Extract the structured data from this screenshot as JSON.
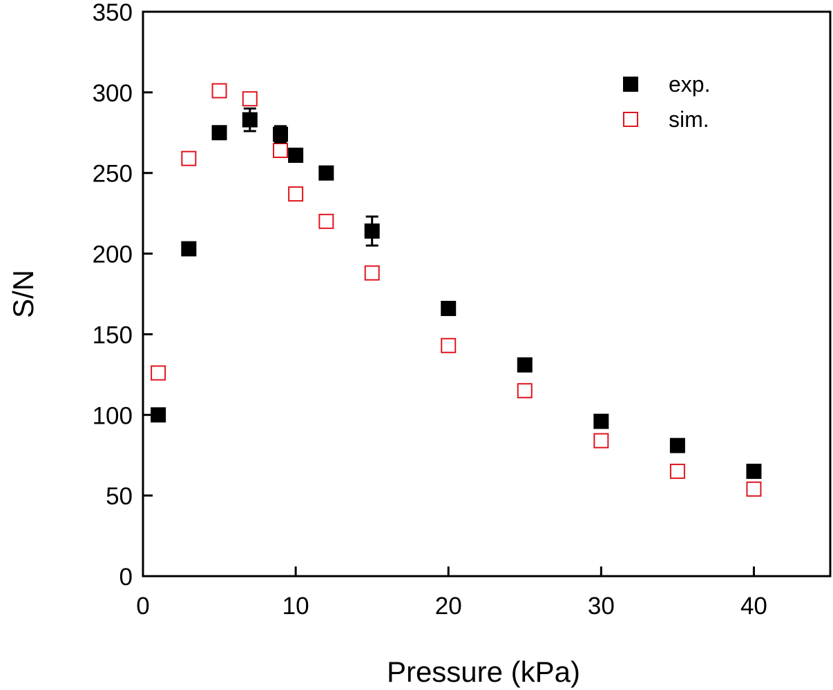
{
  "chart_data": {
    "type": "scatter",
    "title": "",
    "xlabel": "Pressure (kPa)",
    "ylabel": "S/N",
    "xlim": [
      0,
      45
    ],
    "ylim": [
      0,
      350
    ],
    "xticks": [
      0,
      10,
      20,
      30,
      40
    ],
    "yticks": [
      0,
      50,
      100,
      150,
      200,
      250,
      300,
      350
    ],
    "grid": false,
    "legend_position": "top-right",
    "series": [
      {
        "name": "exp.",
        "marker": "filled-square",
        "color": "#000000",
        "x": [
          1,
          3,
          5,
          7,
          9,
          10,
          12,
          15,
          20,
          25,
          30,
          35,
          40
        ],
        "y": [
          100,
          203,
          275,
          283,
          274,
          261,
          250,
          214,
          166,
          131,
          96,
          81,
          65
        ],
        "error": [
          0,
          0,
          3,
          7,
          5,
          0,
          0,
          9,
          0,
          0,
          0,
          0,
          0
        ]
      },
      {
        "name": "sim.",
        "marker": "open-square",
        "color": "#e0141e",
        "x": [
          1,
          3,
          5,
          7,
          9,
          10,
          12,
          15,
          20,
          25,
          30,
          35,
          40
        ],
        "y": [
          126,
          259,
          301,
          296,
          264,
          237,
          220,
          188,
          143,
          115,
          84,
          65,
          54
        ]
      }
    ]
  }
}
